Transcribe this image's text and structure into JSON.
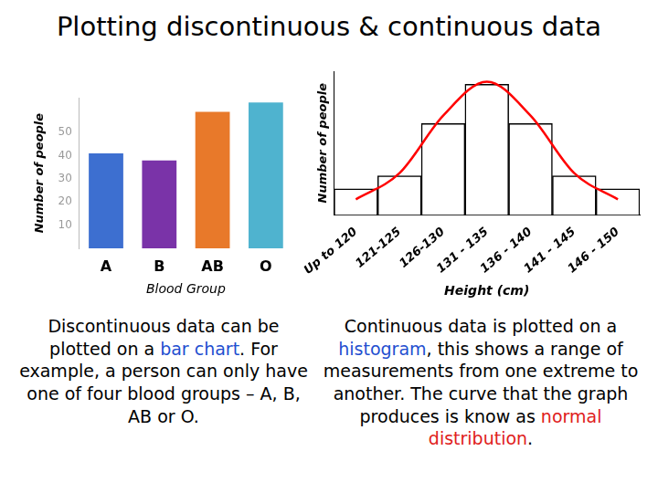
{
  "header": {
    "title": "Plotting discontinuous & continuous data"
  },
  "chart_data": [
    {
      "type": "bar",
      "x_label": "Blood Group",
      "y_label": "Number of people",
      "categories": [
        "A",
        "B",
        "AB",
        "O"
      ],
      "values": [
        41,
        38,
        59,
        63
      ],
      "colors": [
        "#3d6fd0",
        "#7a33a8",
        "#e8792a",
        "#4fb3cf"
      ],
      "ylim": [
        0,
        65
      ],
      "yticks": [
        10,
        20,
        30,
        40,
        50
      ],
      "grid": false
    },
    {
      "type": "histogram",
      "x_label": "Height (cm)",
      "y_label": "Number of people",
      "categories": [
        "Up to 120",
        "121-125",
        "126-130",
        "131 - 135",
        "136 - 140",
        "141 - 145",
        "146 - 150"
      ],
      "series": [
        {
          "type": "bar",
          "color": "#ffffff",
          "values": [
            2,
            3,
            7,
            10,
            7,
            3,
            2
          ]
        },
        {
          "type": "line",
          "color": "#ff0000",
          "values": [
            1.2,
            3.2,
            7.6,
            10.2,
            7.6,
            3.2,
            1.2
          ]
        }
      ],
      "ylim": [
        0,
        11
      ],
      "yticks": [],
      "grid": false,
      "tick_labels": "x"
    }
  ],
  "captions": [
    [
      {
        "text": "Discontinuous data can be plotted on a "
      },
      {
        "text": "bar chart",
        "color": "#1f4fd0"
      },
      {
        "text": ". For example, a person can only have one of four blood groups – A, B, AB or O."
      }
    ],
    [
      {
        "text": "Continuous data is plotted on a "
      },
      {
        "text": "histogram",
        "color": "#1f4fd0"
      },
      {
        "text": ", this shows a range of measurements from one extreme to another. The curve that the graph produces is know as "
      },
      {
        "text": "normal distribution",
        "color": "#e02020"
      },
      {
        "text": "."
      }
    ]
  ]
}
